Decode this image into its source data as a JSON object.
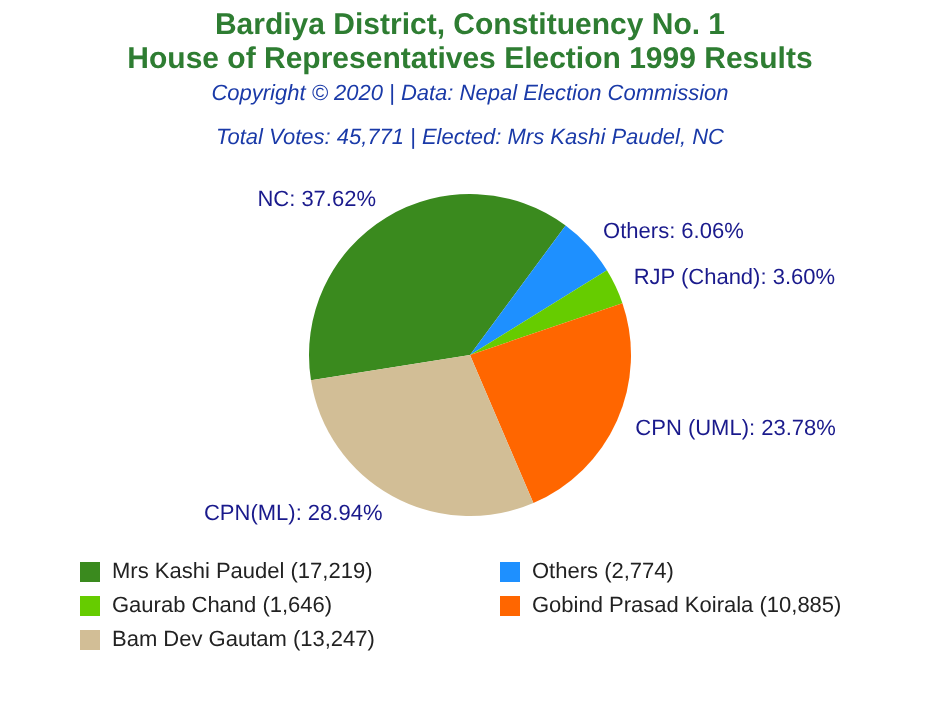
{
  "chart_data": {
    "type": "pie",
    "title": "Bardiya District, Constituency No. 1\nHouse of Representatives Election 1999 Results",
    "annotations": [
      "Copyright © 2020 | Data: Nepal Election Commission",
      "Total Votes: 45,771 | Elected: Mrs Kashi Paudel, NC"
    ],
    "categories": [
      "Mrs Kashi Paudel (17,219)",
      "Others (2,774)",
      "Gaurab Chand (1,646)",
      "Gobind Prasad Koirala (10,885)",
      "Bam Dev Gautam (13,247)"
    ],
    "values": [
      37.62,
      6.06,
      3.6,
      23.78,
      28.94
    ],
    "colors": [
      "#3a8a1e",
      "#1e90ff",
      "#66cc00",
      "#ff6600",
      "#d2be96"
    ],
    "value_labels": [
      "NC: 37.62%",
      "Others: 6.06%",
      "RJP (Chand): 3.60%",
      "CPN (UML): 23.78%",
      "CPN(ML): 28.94%"
    ],
    "legend": "bottom"
  }
}
